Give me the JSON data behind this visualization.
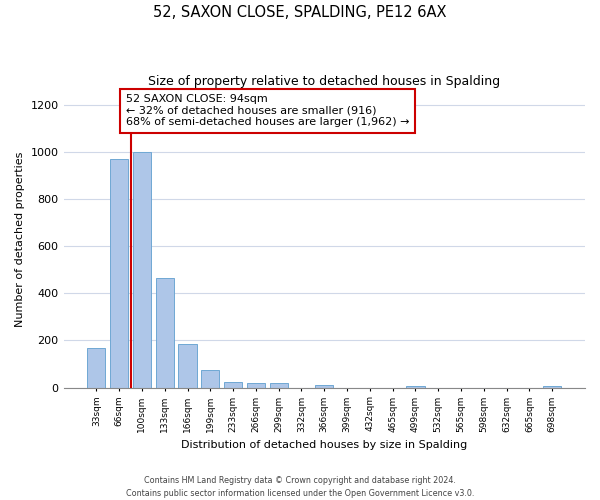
{
  "title": "52, SAXON CLOSE, SPALDING, PE12 6AX",
  "subtitle": "Size of property relative to detached houses in Spalding",
  "xlabel": "Distribution of detached houses by size in Spalding",
  "ylabel": "Number of detached properties",
  "bar_labels": [
    "33sqm",
    "66sqm",
    "100sqm",
    "133sqm",
    "166sqm",
    "199sqm",
    "233sqm",
    "266sqm",
    "299sqm",
    "332sqm",
    "366sqm",
    "399sqm",
    "432sqm",
    "465sqm",
    "499sqm",
    "532sqm",
    "565sqm",
    "598sqm",
    "632sqm",
    "665sqm",
    "698sqm"
  ],
  "bar_values": [
    170,
    970,
    1000,
    465,
    185,
    75,
    25,
    18,
    18,
    0,
    10,
    0,
    0,
    0,
    7,
    0,
    0,
    0,
    0,
    0,
    8
  ],
  "bar_color": "#aec6e8",
  "bar_edge_color": "#6fa8d4",
  "property_line_index": 1.5,
  "annotation_text": "52 SAXON CLOSE: 94sqm\n← 32% of detached houses are smaller (916)\n68% of semi-detached houses are larger (1,962) →",
  "ylim": [
    0,
    1260
  ],
  "yticks": [
    0,
    200,
    400,
    600,
    800,
    1000,
    1200
  ],
  "footer1": "Contains HM Land Registry data © Crown copyright and database right 2024.",
  "footer2": "Contains public sector information licensed under the Open Government Licence v3.0.",
  "background_color": "#ffffff",
  "grid_color": "#d0d8e8",
  "box_color": "#cc0000",
  "figsize": [
    6.0,
    5.0
  ],
  "dpi": 100
}
